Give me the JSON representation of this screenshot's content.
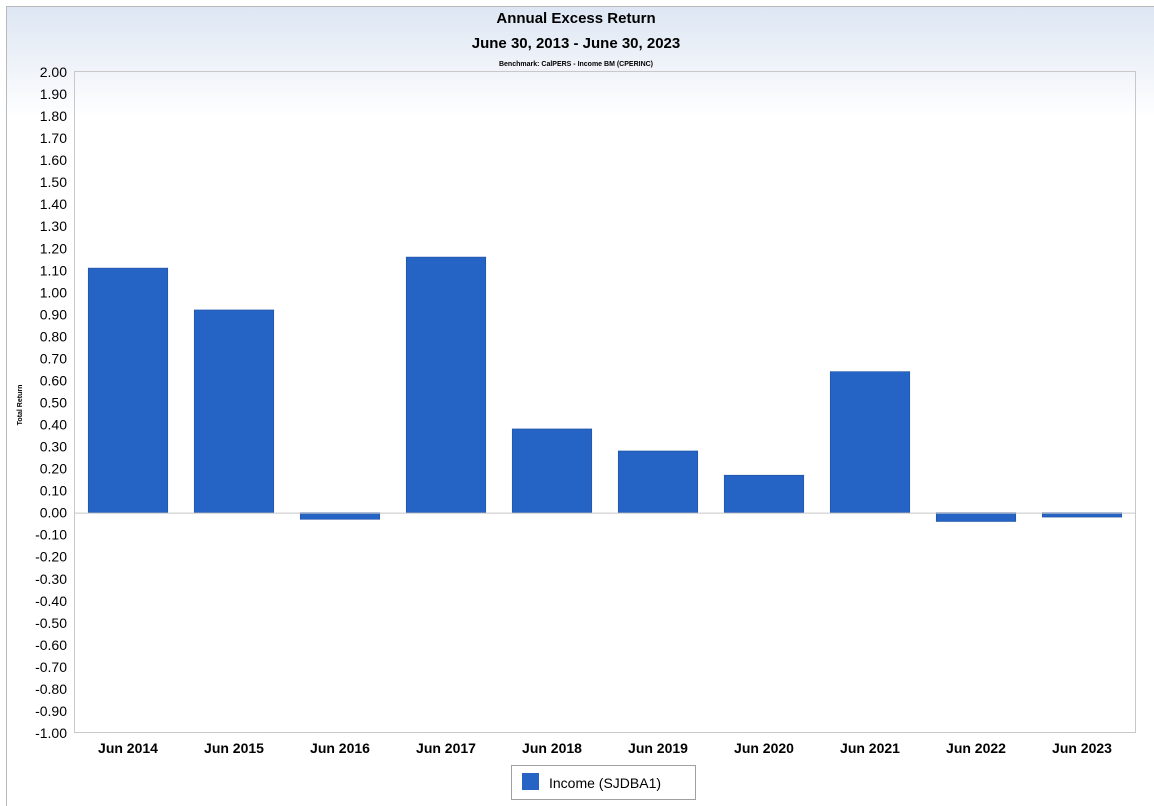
{
  "chart_data": {
    "type": "bar",
    "title": "Annual Excess Return",
    "subtitle": "June 30, 2013 - June 30, 2023",
    "benchmark_label": "Benchmark: CalPERS - Income BM (CPERINC)",
    "ylabel": "Total Return",
    "xlabel": "",
    "ylim": [
      -1.0,
      2.0
    ],
    "ytick_step": 0.1,
    "categories": [
      "Jun 2014",
      "Jun 2015",
      "Jun 2016",
      "Jun 2017",
      "Jun 2018",
      "Jun 2019",
      "Jun 2020",
      "Jun 2021",
      "Jun 2022",
      "Jun 2023"
    ],
    "series": [
      {
        "name": "Income (SJDBA1)",
        "color": "#2563c4",
        "values": [
          1.11,
          0.92,
          -0.03,
          1.16,
          0.38,
          0.28,
          0.17,
          0.64,
          -0.04,
          -0.02
        ]
      }
    ],
    "grid": false,
    "legend_position": "bottom"
  }
}
